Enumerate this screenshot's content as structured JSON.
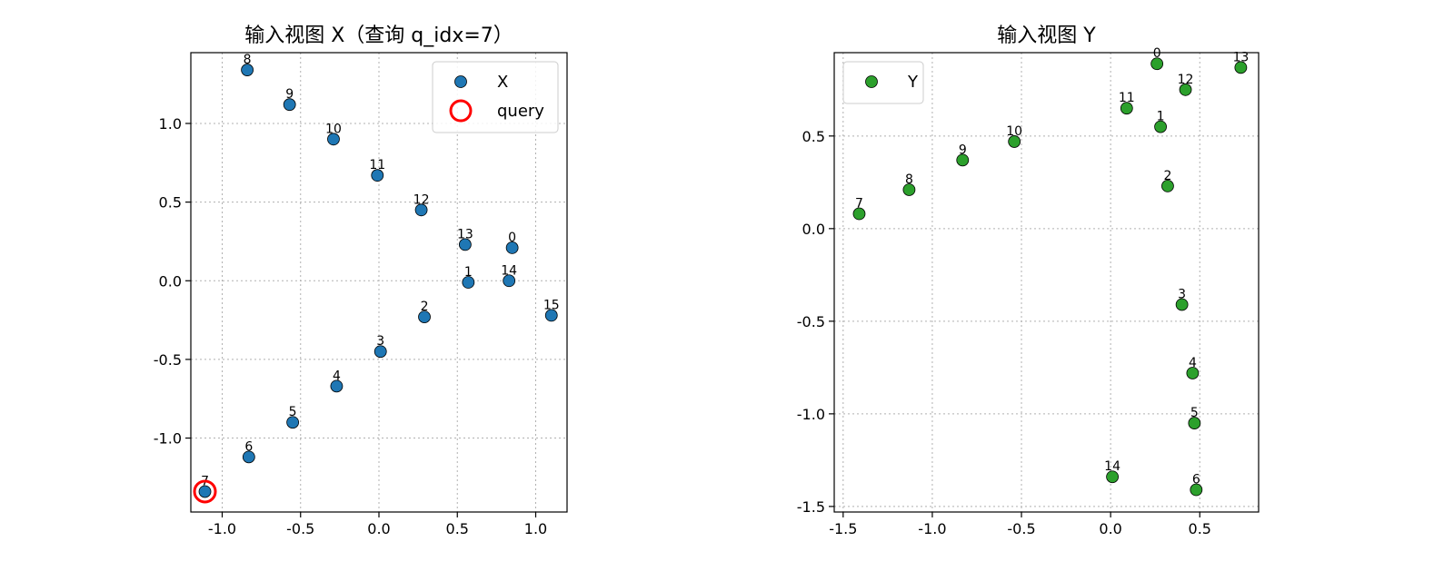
{
  "chart_data": [
    {
      "type": "scatter",
      "title": "输入视图 X（查询 q_idx=7）",
      "xlabel": "",
      "ylabel": "",
      "xlim": [
        -1.2,
        1.2
      ],
      "ylim": [
        -1.47,
        1.45
      ],
      "xticks": [
        -1.0,
        -0.5,
        0.0,
        0.5,
        1.0
      ],
      "xtick_labels": [
        "-1.0",
        "-0.5",
        "0.0",
        "0.5",
        "1.0"
      ],
      "yticks": [
        -1.0,
        -0.5,
        0.0,
        0.5,
        1.0
      ],
      "ytick_labels": [
        "-1.0",
        "-0.5",
        "0.0",
        "0.5",
        "1.0"
      ],
      "grid": true,
      "legend_position": "upper right",
      "legend": [
        {
          "label": "X",
          "marker": "point",
          "color": "#1f77b4"
        },
        {
          "label": "query",
          "marker": "ring",
          "color": "#ff0000"
        }
      ],
      "series": [
        {
          "name": "X",
          "color": "#1f77b4",
          "points": [
            {
              "label": "0",
              "x": 0.85,
              "y": 0.21
            },
            {
              "label": "1",
              "x": 0.57,
              "y": -0.01
            },
            {
              "label": "2",
              "x": 0.29,
              "y": -0.23
            },
            {
              "label": "3",
              "x": 0.01,
              "y": -0.45
            },
            {
              "label": "4",
              "x": -0.27,
              "y": -0.67
            },
            {
              "label": "5",
              "x": -0.55,
              "y": -0.9
            },
            {
              "label": "6",
              "x": -0.83,
              "y": -1.12
            },
            {
              "label": "7",
              "x": -1.11,
              "y": -1.34
            },
            {
              "label": "8",
              "x": -0.84,
              "y": 1.34
            },
            {
              "label": "9",
              "x": -0.57,
              "y": 1.12
            },
            {
              "label": "10",
              "x": -0.29,
              "y": 0.9
            },
            {
              "label": "11",
              "x": -0.01,
              "y": 0.67
            },
            {
              "label": "12",
              "x": 0.27,
              "y": 0.45
            },
            {
              "label": "13",
              "x": 0.55,
              "y": 0.23
            },
            {
              "label": "14",
              "x": 0.83,
              "y": 0.0
            },
            {
              "label": "15",
              "x": 1.1,
              "y": -0.22
            }
          ]
        }
      ],
      "query": {
        "name": "query",
        "label": "7",
        "x": -1.11,
        "y": -1.34,
        "color": "#ff0000"
      }
    },
    {
      "type": "scatter",
      "title": "输入视图 Y",
      "xlabel": "",
      "ylabel": "",
      "xlim": [
        -1.55,
        0.83
      ],
      "ylim": [
        -1.53,
        0.95
      ],
      "xticks": [
        -1.5,
        -1.0,
        -0.5,
        0.0,
        0.5
      ],
      "xtick_labels": [
        "-1.5",
        "-1.0",
        "-0.5",
        "0.0",
        "0.5"
      ],
      "yticks": [
        -1.5,
        -1.0,
        -0.5,
        0.0,
        0.5
      ],
      "ytick_labels": [
        "-1.5",
        "-1.0",
        "-0.5",
        "0.0",
        "0.5"
      ],
      "grid": true,
      "legend_position": "upper left",
      "legend": [
        {
          "label": "Y",
          "marker": "point",
          "color": "#2ca02c"
        }
      ],
      "series": [
        {
          "name": "Y",
          "color": "#2ca02c",
          "points": [
            {
              "label": "0",
              "x": 0.26,
              "y": 0.89
            },
            {
              "label": "1",
              "x": 0.28,
              "y": 0.55
            },
            {
              "label": "2",
              "x": 0.32,
              "y": 0.23
            },
            {
              "label": "3",
              "x": 0.4,
              "y": -0.41
            },
            {
              "label": "4",
              "x": 0.46,
              "y": -0.78
            },
            {
              "label": "5",
              "x": 0.47,
              "y": -1.05
            },
            {
              "label": "6",
              "x": 0.48,
              "y": -1.41
            },
            {
              "label": "7",
              "x": -1.41,
              "y": 0.08
            },
            {
              "label": "8",
              "x": -1.13,
              "y": 0.21
            },
            {
              "label": "9",
              "x": -0.83,
              "y": 0.37
            },
            {
              "label": "10",
              "x": -0.54,
              "y": 0.47
            },
            {
              "label": "11",
              "x": 0.09,
              "y": 0.65
            },
            {
              "label": "12",
              "x": 0.42,
              "y": 0.75
            },
            {
              "label": "13",
              "x": 0.73,
              "y": 0.87
            },
            {
              "label": "14",
              "x": 0.01,
              "y": -1.34
            }
          ]
        }
      ]
    }
  ]
}
